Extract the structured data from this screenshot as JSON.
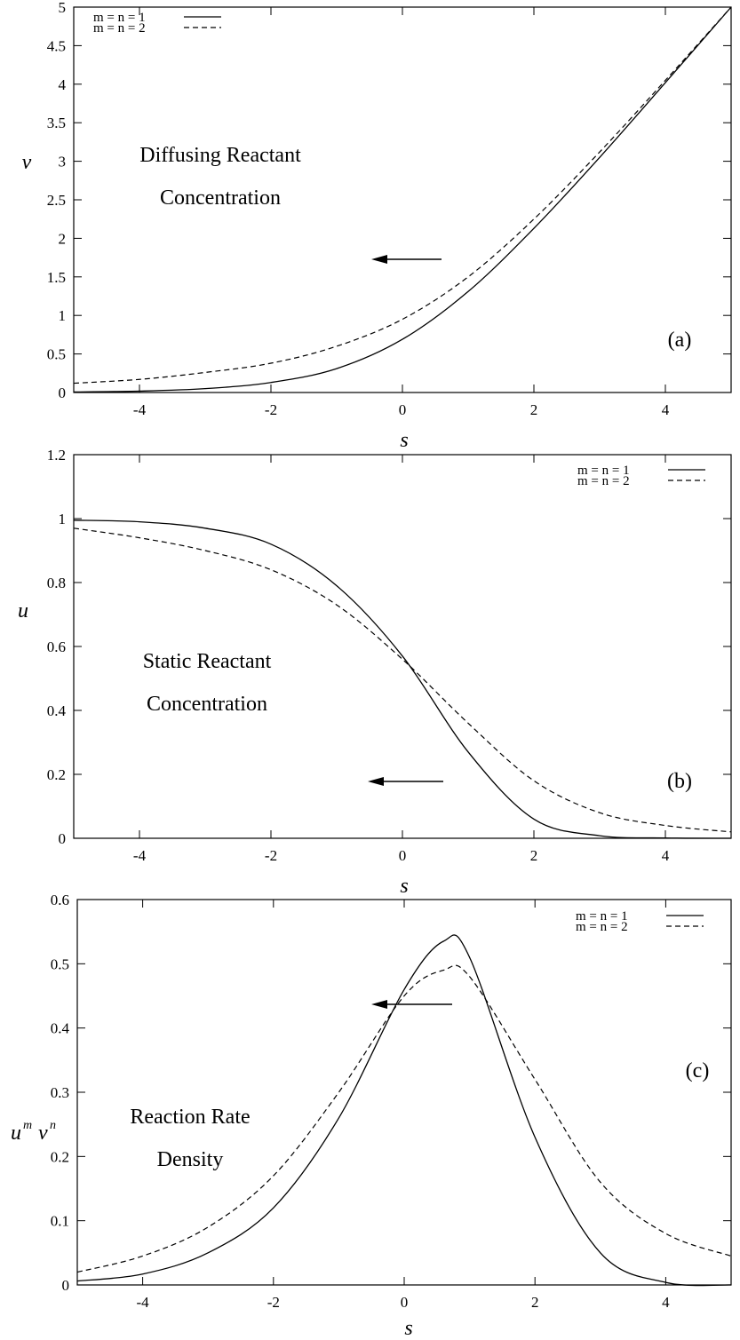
{
  "chart_data": [
    {
      "type": "line",
      "panel": "(a)",
      "title_lines": [
        "Diffusing Reactant",
        "Concentration"
      ],
      "xlabel": "s",
      "ylabel": "v",
      "xlim": [
        -5,
        5
      ],
      "ylim": [
        0,
        5
      ],
      "xticks": [
        "-4",
        "-2",
        "0",
        "2",
        "4"
      ],
      "yticks": [
        "0",
        "0.5",
        "1",
        "1.5",
        "2",
        "2.5",
        "3",
        "3.5",
        "4",
        "4.5",
        "5"
      ],
      "legend_position": "top-left",
      "x": [
        -5,
        -4,
        -3,
        -2,
        -1,
        0,
        1,
        2,
        3,
        4,
        5
      ],
      "series": [
        {
          "name": "m = n = 1",
          "style": "solid",
          "values": [
            0.007,
            0.018,
            0.05,
            0.13,
            0.31,
            0.69,
            1.31,
            2.13,
            3.05,
            4.02,
            5.0
          ]
        },
        {
          "name": "m = n = 2",
          "style": "dashed",
          "values": [
            0.12,
            0.17,
            0.26,
            0.38,
            0.6,
            0.95,
            1.5,
            2.25,
            3.12,
            4.05,
            5.0
          ]
        }
      ]
    },
    {
      "type": "line",
      "panel": "(b)",
      "title_lines": [
        "Static Reactant",
        "Concentration"
      ],
      "xlabel": "s",
      "ylabel": "u",
      "xlim": [
        -5,
        5
      ],
      "ylim": [
        0,
        1.2
      ],
      "xticks": [
        "-4",
        "-2",
        "0",
        "2",
        "4"
      ],
      "yticks": [
        "0",
        "0.2",
        "0.4",
        "0.6",
        "0.8",
        "1",
        "1.2"
      ],
      "legend_position": "top-right",
      "x": [
        -5,
        -4,
        -3,
        -2,
        -1,
        0,
        1,
        2,
        3,
        4,
        5
      ],
      "series": [
        {
          "name": "m = n = 1",
          "style": "solid",
          "values": [
            0.995,
            0.99,
            0.97,
            0.92,
            0.79,
            0.57,
            0.27,
            0.06,
            0.008,
            0.001,
            0.0
          ]
        },
        {
          "name": "m = n = 2",
          "style": "dashed",
          "values": [
            0.97,
            0.94,
            0.9,
            0.84,
            0.73,
            0.56,
            0.36,
            0.18,
            0.08,
            0.04,
            0.02
          ]
        }
      ]
    },
    {
      "type": "line",
      "panel": "(c)",
      "title_lines": [
        "Reaction Rate",
        "Density"
      ],
      "xlabel": "s",
      "ylabel_base": [
        "u",
        "v"
      ],
      "ylabel_exp": [
        "m",
        "n"
      ],
      "xlim": [
        -5,
        5
      ],
      "ylim": [
        0,
        0.6
      ],
      "xticks": [
        "-4",
        "-2",
        "0",
        "2",
        "4"
      ],
      "yticks": [
        "0",
        "0.1",
        "0.2",
        "0.3",
        "0.4",
        "0.5",
        "0.6"
      ],
      "legend_position": "top-right",
      "x": [
        -5,
        -4,
        -3,
        -2,
        -1,
        0,
        0.6,
        1,
        2,
        3,
        4,
        5
      ],
      "series": [
        {
          "name": "m = n = 1",
          "style": "solid",
          "values": [
            0.006,
            0.017,
            0.05,
            0.12,
            0.26,
            0.46,
            0.535,
            0.51,
            0.23,
            0.05,
            0.004,
            0.0
          ]
        },
        {
          "name": "m = n = 2",
          "style": "dashed",
          "values": [
            0.02,
            0.045,
            0.09,
            0.17,
            0.3,
            0.45,
            0.49,
            0.48,
            0.32,
            0.16,
            0.08,
            0.045
          ]
        }
      ]
    }
  ]
}
